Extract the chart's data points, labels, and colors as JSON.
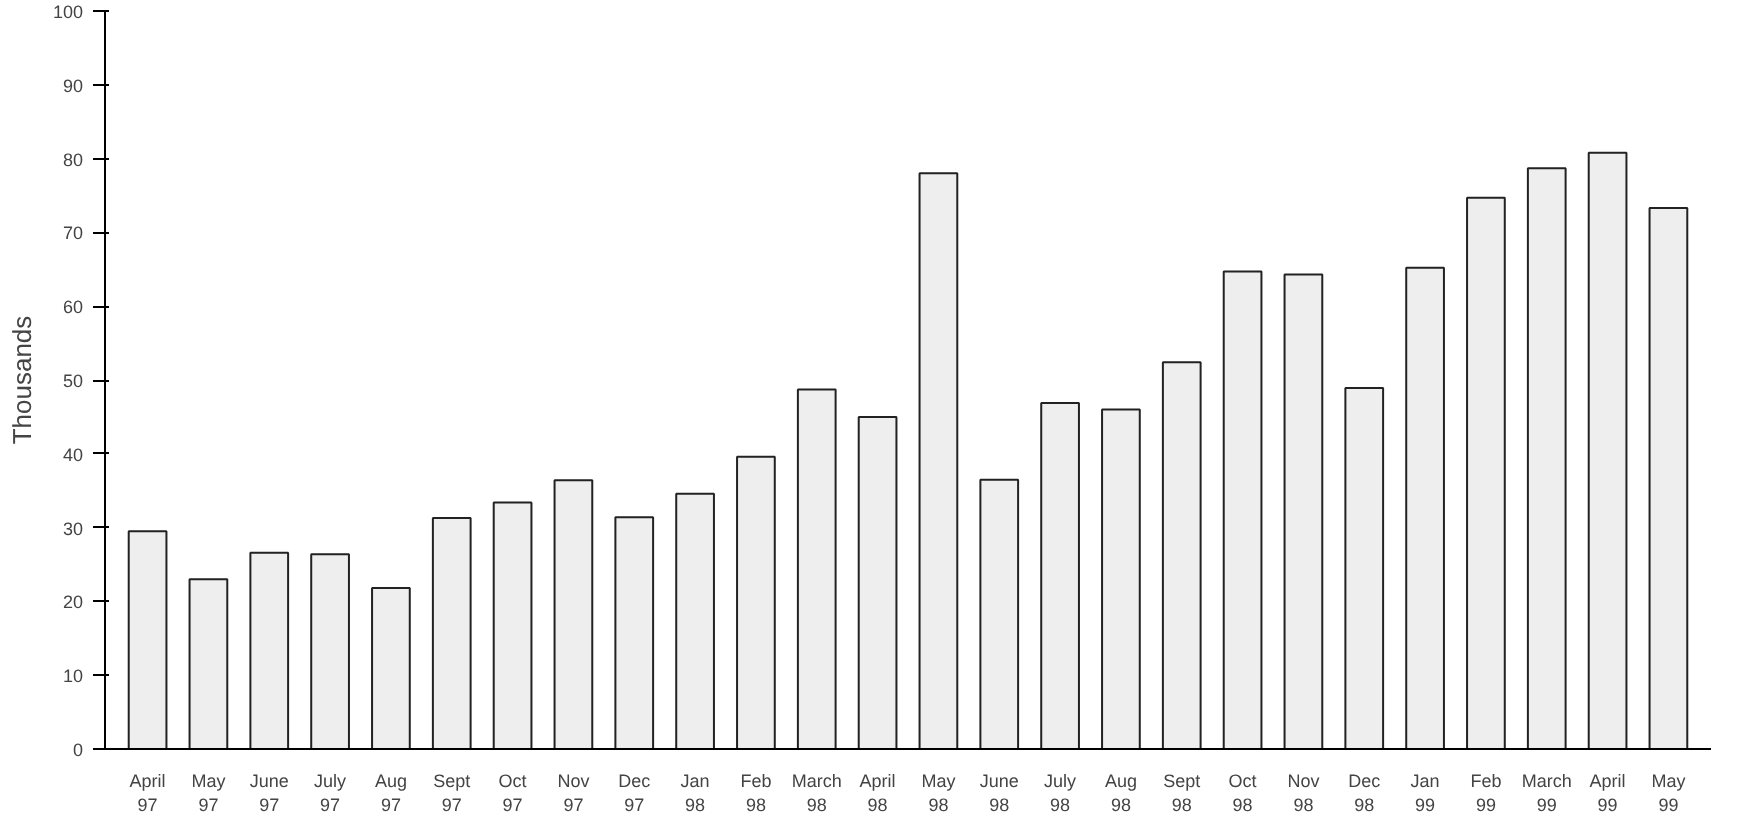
{
  "chart_data": {
    "type": "bar",
    "ylabel": "Thousands",
    "categories": [
      "April 97",
      "May 97",
      "June 97",
      "July 97",
      "Aug 97",
      "Sept 97",
      "Oct 97",
      "Nov 97",
      "Dec 97",
      "Jan 98",
      "Feb 98",
      "March 98",
      "April 98",
      "May 98",
      "June 98",
      "July 98",
      "Aug 98",
      "Sept 98",
      "Oct 98",
      "Nov 98",
      "Dec 98",
      "Jan 99",
      "Feb 99",
      "March 99",
      "April 99",
      "May 99"
    ],
    "values": [
      29.5,
      23,
      26.6,
      26.4,
      21.8,
      31.3,
      33.4,
      36.4,
      31.4,
      34.6,
      39.6,
      48.7,
      45,
      78,
      36.5,
      46.9,
      46,
      52.4,
      64.7,
      64.3,
      48.9,
      65.2,
      74.7,
      78.7,
      80.8,
      73.3
    ],
    "color": "#eeeeee",
    "ylim": [
      0,
      100
    ],
    "yticks": [
      0,
      10,
      20,
      30,
      40,
      50,
      60,
      70,
      80,
      90,
      100
    ],
    "grid": false
  }
}
